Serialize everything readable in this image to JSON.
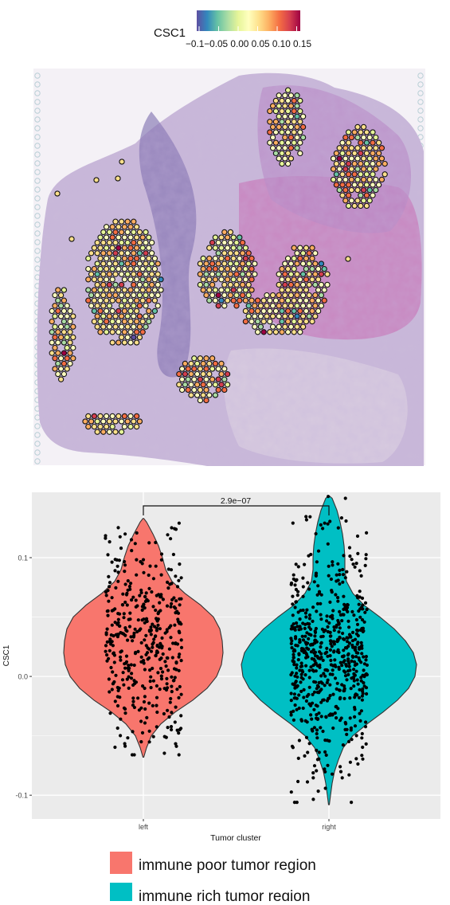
{
  "chart_data": [
    {
      "type": "scatter",
      "subtype": "spatial-spot-map",
      "colorbar": {
        "label": "CSC1",
        "ticks": [
          "-0.10",
          "-0.05",
          "0.00",
          "0.05",
          "0.10",
          "0.15"
        ],
        "tick_text": "−0.1−0.05 0.00 0.05 0.10 0.15",
        "range": [
          -0.15,
          0.15
        ],
        "palette": [
          "#5e4fa2",
          "#3288bd",
          "#66c2a5",
          "#abdda4",
          "#e6f598",
          "#ffffbf",
          "#fee08b",
          "#fdae61",
          "#f46d43",
          "#d53e4f",
          "#9e0142"
        ]
      },
      "background": "H&E stained tissue section",
      "tissue_colors": {
        "stroma": "#c9b8d9",
        "tumor": "#b887c4",
        "dense": "#6f5fa6",
        "pink": "#c878b8"
      }
    },
    {
      "type": "violin",
      "title": "",
      "xlabel": "Tumor cluster",
      "ylabel": "CSC1",
      "categories": [
        "left",
        "right"
      ],
      "ylim": [
        -0.12,
        0.155
      ],
      "yticks": [
        "-0.1",
        "0.0",
        "0.1"
      ],
      "ytick_values": [
        -0.1,
        0.0,
        0.1
      ],
      "series": [
        {
          "name": "immune poor tumor region",
          "category": "left",
          "color": "#f8766d",
          "min": -0.068,
          "max": 0.133,
          "mode": 0.05
        },
        {
          "name": "immune rich tumor region",
          "category": "right",
          "color": "#00bfc4",
          "min": -0.108,
          "max": 0.152,
          "mode": 0.03
        }
      ],
      "significance": {
        "label": "2.9e−07",
        "between": [
          "left",
          "right"
        ]
      },
      "panel_bg": "#ebebeb",
      "grid": true,
      "legend_position": "bottom"
    }
  ]
}
